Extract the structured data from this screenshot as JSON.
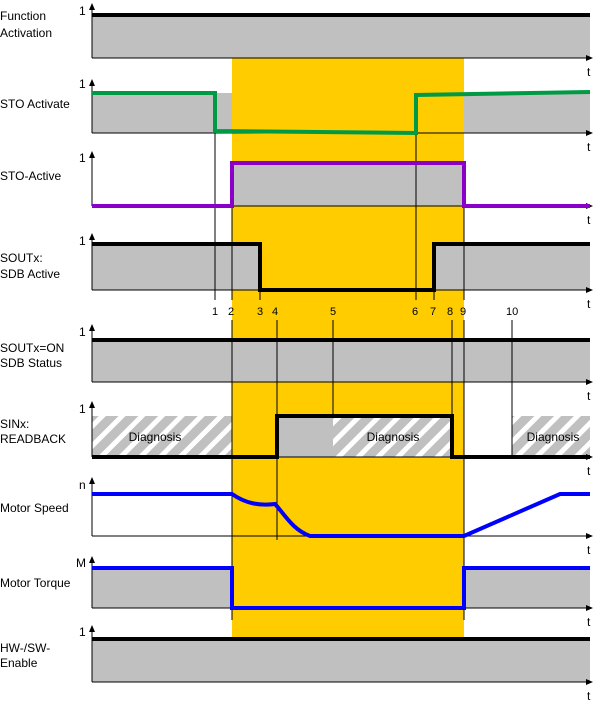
{
  "colors": {
    "grey_fill": "#c0c0c0",
    "highlight": "#ffcc00",
    "signal_black": "#000000",
    "sto_activate": "#009a44",
    "sto_active": "#8b00c8",
    "motor": "#0000ff"
  },
  "labels": {
    "function_activation_1": "Function",
    "function_activation_2": "Activation",
    "sto_activate": "STO Activate",
    "sto_active": "STO-Active",
    "sout_sdb_1": "SOUTx:",
    "sout_sdb_2": "SDB Active",
    "sout_status_1": "SOUTx=ON",
    "sout_status_2": "SDB Status",
    "sin_readback_1": "SINx:",
    "sin_readback_2": "READBACK",
    "motor_speed": "Motor Speed",
    "motor_torque": "Motor Torque",
    "hwsw_1": "HW-/SW-",
    "hwsw_2": "Enable"
  },
  "axis": {
    "t": "t",
    "one": "1",
    "n": "n",
    "m": "M"
  },
  "markers": [
    "1",
    "2",
    "3",
    "4",
    "5",
    "6",
    "7",
    "8",
    "9",
    "10"
  ],
  "diagnosis": "Diagnosis"
}
